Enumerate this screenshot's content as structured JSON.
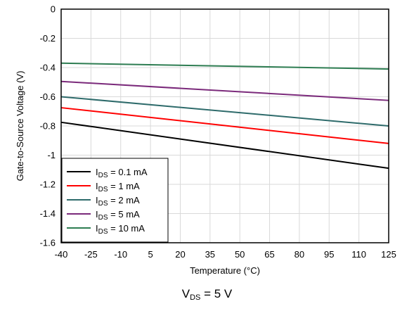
{
  "chart_data": {
    "type": "line",
    "title": "",
    "xlabel": "Temperature (°C)",
    "ylabel": "Gate-to-Source Voltage (V)",
    "x_ticks": [
      -40,
      -25,
      -10,
      5,
      20,
      35,
      50,
      65,
      80,
      95,
      110,
      125
    ],
    "y_ticks": [
      0,
      -0.2,
      -0.4,
      -0.6,
      -0.8,
      -1,
      -1.2,
      -1.4,
      -1.6
    ],
    "x_tick_labels": [
      "-40",
      "-25",
      "-10",
      "5",
      "20",
      "35",
      "50",
      "65",
      "80",
      "95",
      "110",
      "125"
    ],
    "y_tick_labels": [
      "0",
      "-0.2",
      "-0.4",
      "-0.6",
      "-0.8",
      "-1",
      "-1.2",
      "-1.4",
      "-1.6"
    ],
    "xlim": [
      -40,
      125
    ],
    "ylim": [
      -1.6,
      0
    ],
    "grid": true,
    "legend_position": "bottom-left",
    "x": [
      -40,
      125
    ],
    "series": [
      {
        "name": "0.1 mA",
        "color": "#000000",
        "values": [
          -0.775,
          -1.09
        ]
      },
      {
        "name": "1 mA",
        "color": "#ff0000",
        "values": [
          -0.675,
          -0.92
        ]
      },
      {
        "name": "2 mA",
        "color": "#2e6b6b",
        "values": [
          -0.6,
          -0.8
        ]
      },
      {
        "name": "5 mA",
        "color": "#7b2a7b",
        "values": [
          -0.495,
          -0.625
        ]
      },
      {
        "name": "10 mA",
        "color": "#2e7d52",
        "values": [
          -0.37,
          -0.41
        ]
      }
    ]
  },
  "legend": {
    "label_main": "I",
    "label_sub": "DS",
    "label_eq": " = "
  },
  "caption": {
    "main": "V",
    "sub": "DS",
    "rest": " = 5 V"
  }
}
